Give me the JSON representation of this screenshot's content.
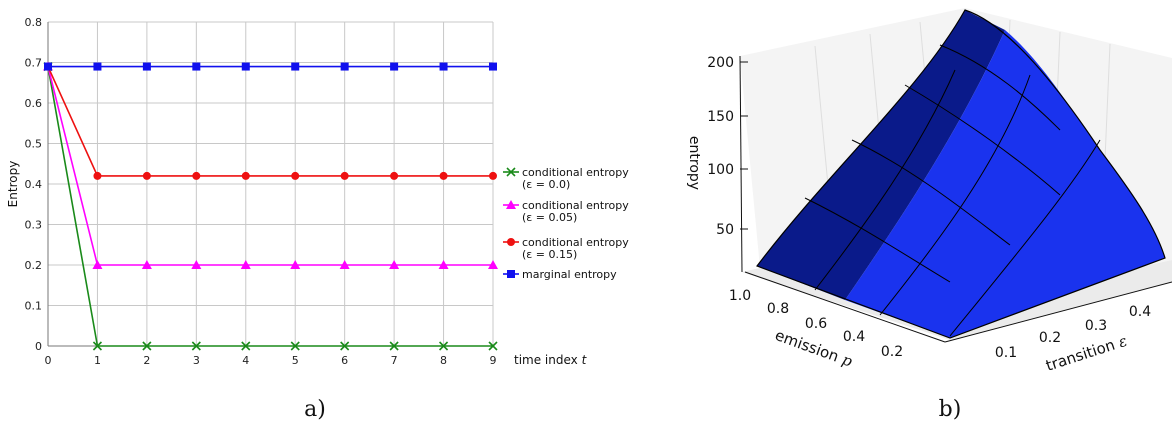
{
  "chart_data": [
    {
      "type": "line",
      "caption": "a)",
      "x": [
        0,
        1,
        2,
        3,
        4,
        5,
        6,
        7,
        8,
        9
      ],
      "xlabel_prefix": "time index ",
      "xlabel_var": "t",
      "ylabel": "Entropy",
      "ylim": [
        0,
        0.8
      ],
      "yticks": [
        "0",
        "0.1",
        "0.2",
        "0.3",
        "0.4",
        "0.5",
        "0.6",
        "0.7",
        "0.8"
      ],
      "xticks": [
        "0",
        "1",
        "2",
        "3",
        "4",
        "5",
        "6",
        "7",
        "8",
        "9"
      ],
      "grid": true,
      "legend_position": "right",
      "series": [
        {
          "name": "conditional entropy",
          "name2": "(ε = 0.0)",
          "color": "#1a8a1a",
          "marker": "x",
          "values": [
            0.69,
            0,
            0,
            0,
            0,
            0,
            0,
            0,
            0,
            0
          ]
        },
        {
          "name": "conditional entropy",
          "name2": "(ε = 0.05)",
          "color": "#ff00ff",
          "marker": "triangle",
          "values": [
            0.69,
            0.2,
            0.2,
            0.2,
            0.2,
            0.2,
            0.2,
            0.2,
            0.2,
            0.2
          ]
        },
        {
          "name": "conditional entropy",
          "name2": "(ε = 0.15)",
          "color": "#ee1111",
          "marker": "circle",
          "values": [
            0.69,
            0.42,
            0.42,
            0.42,
            0.42,
            0.42,
            0.42,
            0.42,
            0.42,
            0.42
          ]
        },
        {
          "name": "marginal entropy",
          "name2": "",
          "color": "#1010ee",
          "marker": "square",
          "values": [
            0.69,
            0.69,
            0.69,
            0.69,
            0.69,
            0.69,
            0.69,
            0.69,
            0.69,
            0.69
          ]
        }
      ]
    },
    {
      "type": "surface",
      "caption": "b)",
      "zlabel": "entropy",
      "zticks": [
        "50",
        "100",
        "150",
        "200"
      ],
      "ylabel": "emission",
      "ylabel_var": "p",
      "yticks": [
        "1.0",
        "0.8",
        "0.6",
        "0.4",
        "0.2"
      ],
      "xlabel": "transition",
      "xlabel_var": "ε",
      "xticks": [
        "0.1",
        "0.2",
        "0.3",
        "0.4"
      ],
      "surface_color": "#1a33ee",
      "surface_dark_color": "#0a1a8a"
    }
  ]
}
